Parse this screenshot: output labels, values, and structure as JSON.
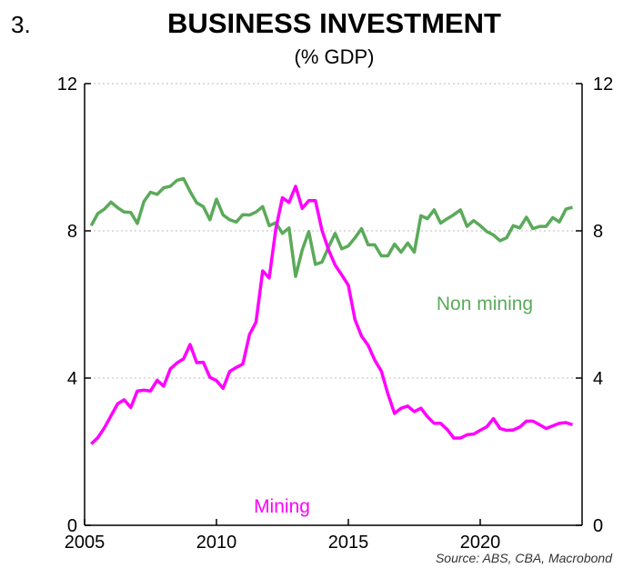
{
  "figure_number": "3.",
  "chart_data": {
    "type": "line",
    "title": "BUSINESS INVESTMENT",
    "subtitle": "(% GDP)",
    "xlabel": "",
    "ylabel": "",
    "xlim": [
      2005,
      2024.1
    ],
    "ylim": [
      0,
      12
    ],
    "x_ticks": [
      2005,
      2010,
      2015,
      2020
    ],
    "y_ticks": [
      0,
      4,
      8,
      12
    ],
    "grid": "horizontal dotted",
    "x_start": 2005.25,
    "x_step": 0.25,
    "series": [
      {
        "name": "Non mining",
        "color": "#5aaa5a",
        "label_position": "right-middle",
        "values": [
          8.14,
          8.47,
          8.59,
          8.78,
          8.63,
          8.51,
          8.5,
          8.2,
          8.8,
          9.05,
          8.99,
          9.17,
          9.21,
          9.37,
          9.42,
          9.07,
          8.76,
          8.66,
          8.3,
          8.86,
          8.43,
          8.3,
          8.24,
          8.44,
          8.43,
          8.51,
          8.66,
          8.14,
          8.22,
          7.93,
          8.08,
          6.76,
          7.48,
          7.98,
          7.09,
          7.15,
          7.56,
          7.93,
          7.51,
          7.59,
          7.81,
          8.06,
          7.62,
          7.62,
          7.32,
          7.32,
          7.64,
          7.42,
          7.67,
          7.42,
          8.41,
          8.33,
          8.57,
          8.21,
          8.33,
          8.44,
          8.57,
          8.12,
          8.28,
          8.14,
          7.98,
          7.89,
          7.73,
          7.81,
          8.14,
          8.08,
          8.37,
          8.06,
          8.12,
          8.12,
          8.36,
          8.24,
          8.59,
          8.64
        ]
      },
      {
        "name": "Mining",
        "color": "#ff00ff",
        "label_position": "bottom-center",
        "values": [
          2.21,
          2.38,
          2.65,
          2.97,
          3.3,
          3.41,
          3.2,
          3.65,
          3.67,
          3.65,
          3.94,
          3.78,
          4.25,
          4.41,
          4.52,
          4.91,
          4.42,
          4.43,
          4.02,
          3.93,
          3.72,
          4.18,
          4.29,
          4.38,
          5.18,
          5.52,
          6.91,
          6.72,
          8.06,
          8.9,
          8.77,
          9.21,
          8.61,
          8.82,
          8.82,
          8.02,
          7.48,
          7.07,
          6.8,
          6.52,
          5.59,
          5.14,
          4.89,
          4.49,
          4.19,
          3.57,
          3.04,
          3.18,
          3.24,
          3.09,
          3.18,
          2.95,
          2.77,
          2.77,
          2.6,
          2.37,
          2.37,
          2.46,
          2.48,
          2.58,
          2.68,
          2.9,
          2.63,
          2.58,
          2.59,
          2.67,
          2.83,
          2.83,
          2.73,
          2.63,
          2.7,
          2.77,
          2.79,
          2.73
        ]
      }
    ],
    "source": "Source: ABS, CBA, Macrobond"
  }
}
